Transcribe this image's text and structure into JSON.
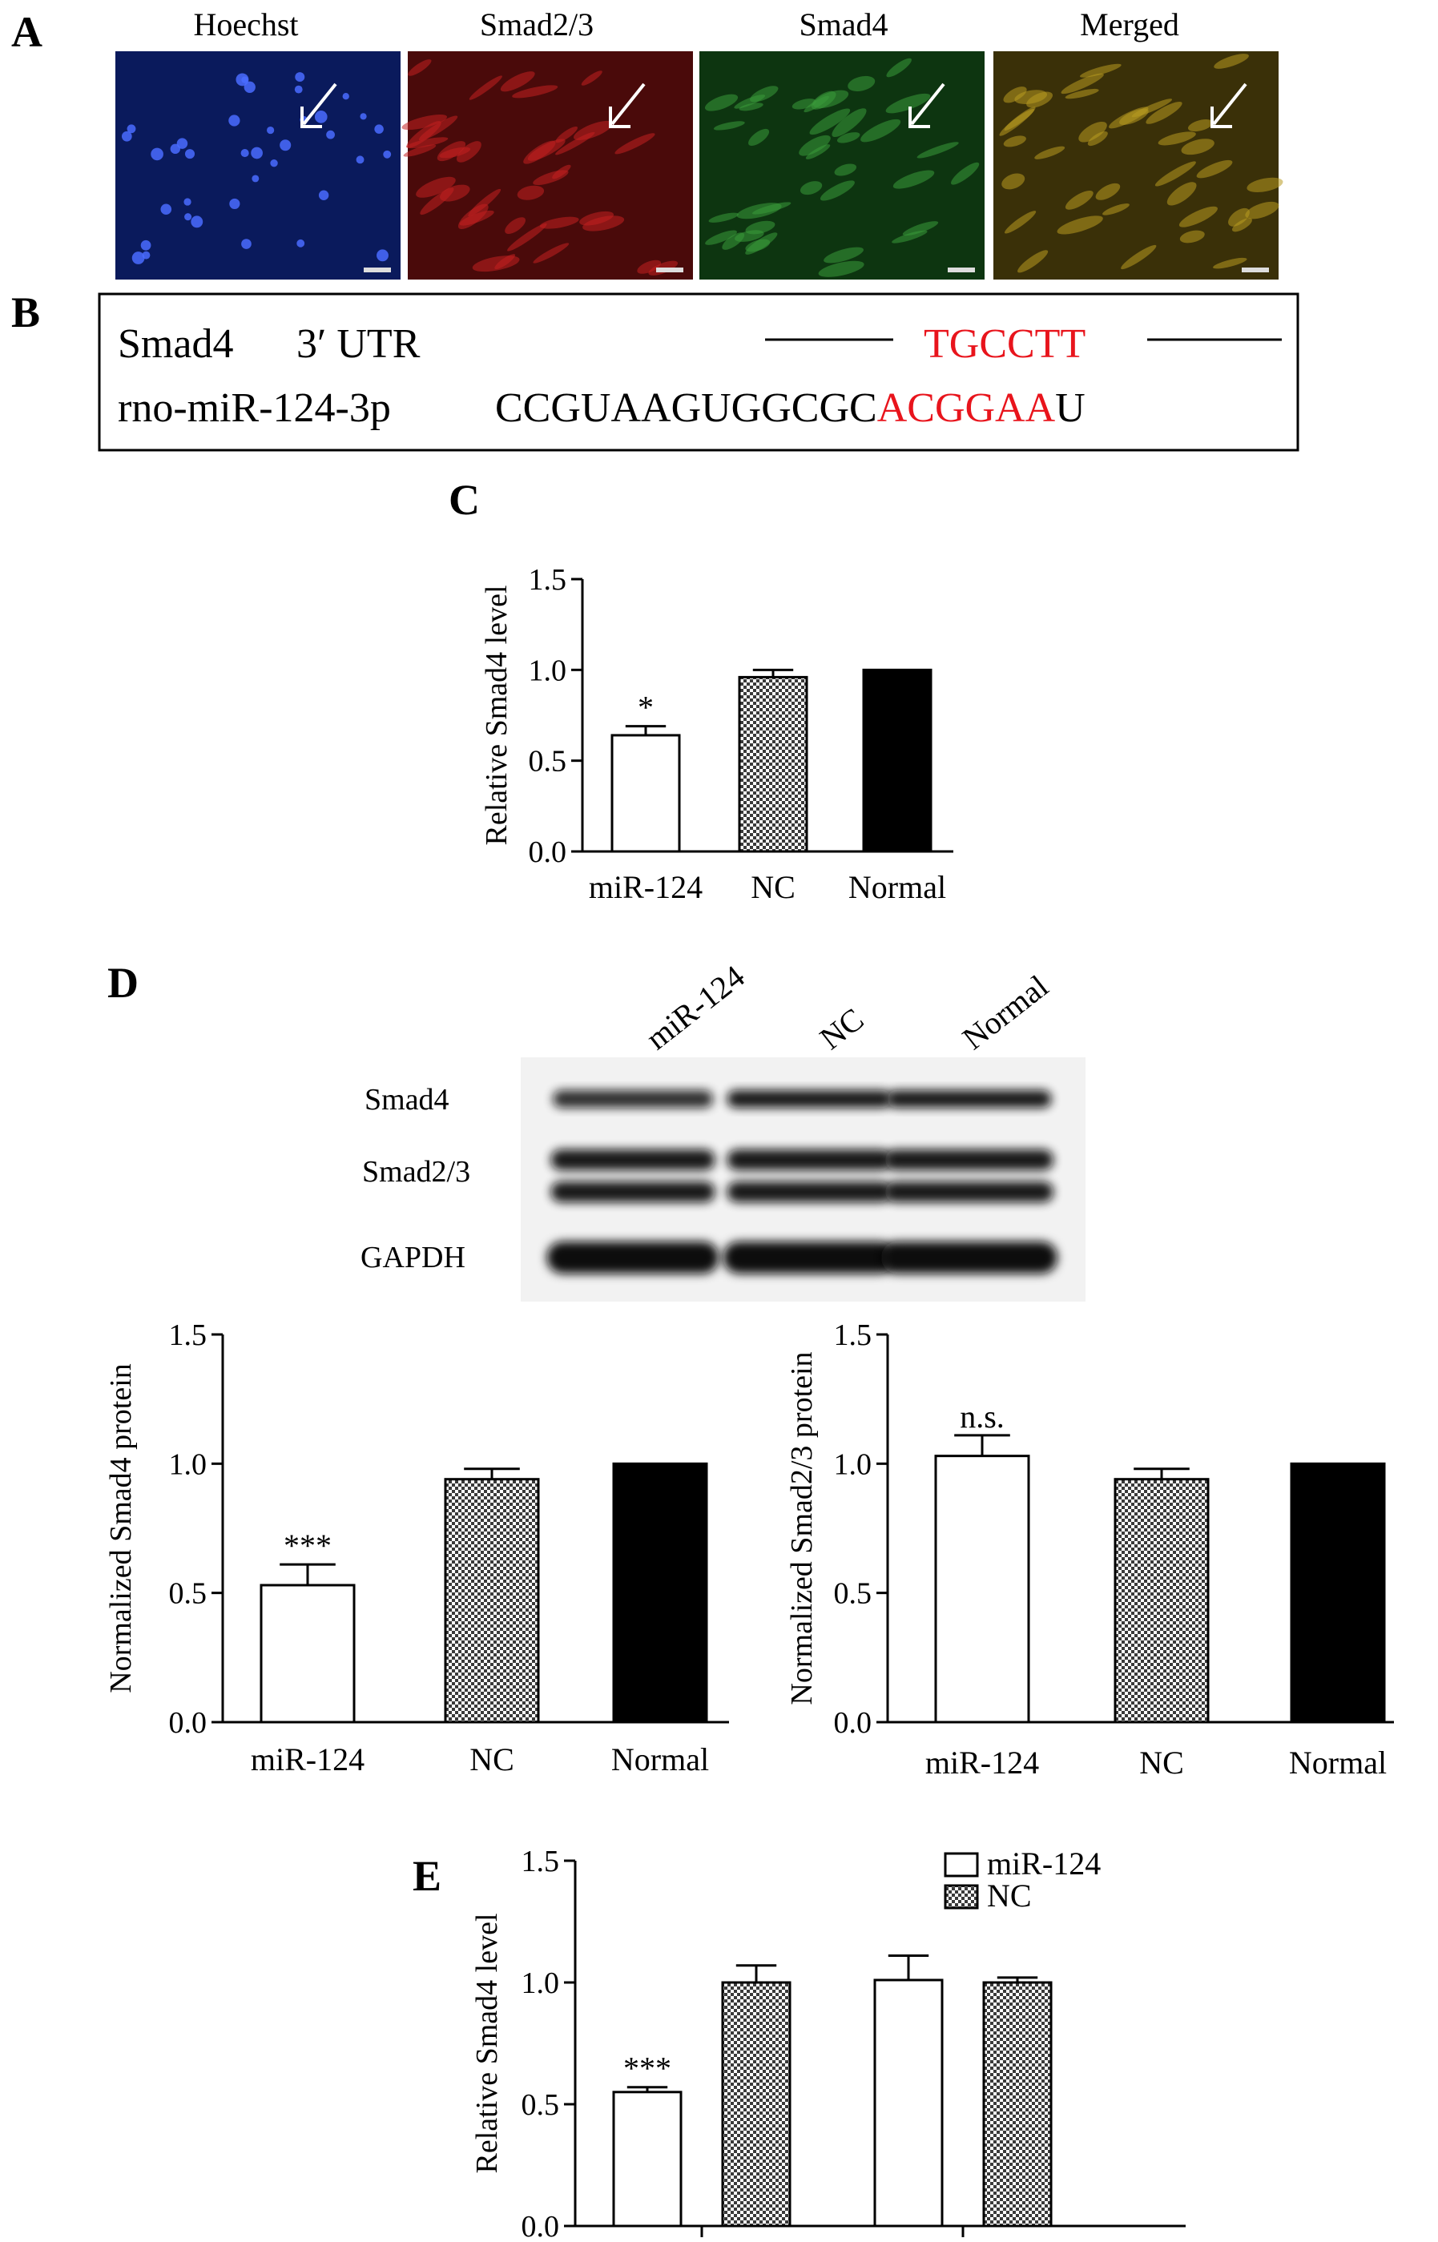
{
  "figure": {
    "panels": {
      "A": "A",
      "B": "B",
      "C": "C",
      "D": "D",
      "E": "E"
    },
    "microscopy": {
      "labels": [
        "Hoechst",
        "Smad2/3",
        "Smad4",
        "Merged"
      ],
      "colors": [
        "#0a1a5c",
        "#4a0a0a",
        "#0d3510",
        "#3a3008"
      ]
    },
    "sequence": {
      "row1_name": "Smad4",
      "row1_region": "3′ UTR",
      "row1_seq": "TGCCTT",
      "row2_name": "rno-miR-124-3p",
      "row2_seq_black": "CCGUAAGUGGCGC",
      "row2_seq_red": "ACGGAA",
      "row2_seq_end": "U",
      "highlight_color": "#e8141c"
    },
    "blot": {
      "lanes": [
        "miR-124",
        "NC",
        "Normal"
      ],
      "rows": [
        "Smad4",
        "Smad2/3",
        "GAPDH"
      ]
    }
  },
  "chart_data": [
    {
      "id": "C",
      "type": "bar",
      "categories": [
        "miR-124",
        "NC",
        "Normal"
      ],
      "values": [
        0.64,
        0.96,
        1.0
      ],
      "errors": [
        0.05,
        0.04,
        0
      ],
      "annotations": [
        "*",
        "",
        ""
      ],
      "fills": [
        "white",
        "hatch",
        "black"
      ],
      "ylabel": "Relative Smad4 level",
      "ylim": [
        0,
        1.5
      ],
      "yticks": [
        "0.0",
        "0.5",
        "1.0",
        "1.5"
      ]
    },
    {
      "id": "D1",
      "type": "bar",
      "categories": [
        "miR-124",
        "NC",
        "Normal"
      ],
      "values": [
        0.53,
        0.94,
        1.0
      ],
      "errors": [
        0.08,
        0.04,
        0
      ],
      "annotations": [
        "***",
        "",
        ""
      ],
      "fills": [
        "white",
        "hatch",
        "black"
      ],
      "ylabel": "Normalized Smad4 protein",
      "ylim": [
        0,
        1.5
      ],
      "yticks": [
        "0.0",
        "0.5",
        "1.0",
        "1.5"
      ]
    },
    {
      "id": "D2",
      "type": "bar",
      "categories": [
        "miR-124",
        "NC",
        "Normal"
      ],
      "values": [
        1.03,
        0.94,
        1.0
      ],
      "errors": [
        0.08,
        0.04,
        0
      ],
      "annotations": [
        "n.s.",
        "",
        ""
      ],
      "fills": [
        "white",
        "hatch",
        "black"
      ],
      "ylabel": "Normalized Smad2/3 protein",
      "ylim": [
        0,
        1.5
      ],
      "yticks": [
        "0.0",
        "0.5",
        "1.0",
        "1.5"
      ]
    },
    {
      "id": "E",
      "type": "bar",
      "series": [
        {
          "name": "miR-124",
          "values": [
            0.55,
            1.01
          ],
          "errors": [
            0.02,
            0.1
          ],
          "annotations": [
            "***",
            ""
          ]
        },
        {
          "name": "NC",
          "values": [
            1.0,
            1.0
          ],
          "errors": [
            0.07,
            0.02
          ],
          "annotations": [
            "",
            ""
          ]
        }
      ],
      "ylabel": "Relative Smad4 level",
      "ylim": [
        0,
        1.5
      ],
      "yticks": [
        "0.0",
        "0.5",
        "1.0",
        "1.5"
      ],
      "legend": "top-right"
    }
  ]
}
